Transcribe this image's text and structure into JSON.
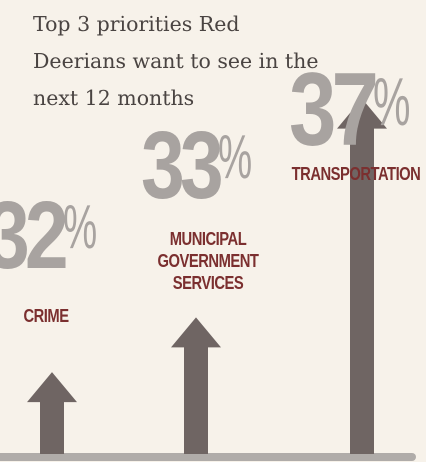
{
  "headline": "Top 3 priorities Red Deerians want to see in the next 12 months",
  "colors": {
    "background": "#f7f2ea",
    "arrow": "#6f6563",
    "percent": "#a8a3a0",
    "category": "#7b2f2f",
    "baseline": "#b0aca9"
  },
  "chart_data": {
    "type": "bar",
    "title": "Top 3 priorities Red Deerians want to see in the next 12 months",
    "categories": [
      "CRIME",
      "MUNICIPAL GOVERNMENT SERVICES",
      "TRANSPORTATION"
    ],
    "values": [
      32,
      33,
      37
    ],
    "value_labels": [
      "32",
      "33",
      "37"
    ],
    "unit": "%",
    "grid": false,
    "legend": "none"
  }
}
